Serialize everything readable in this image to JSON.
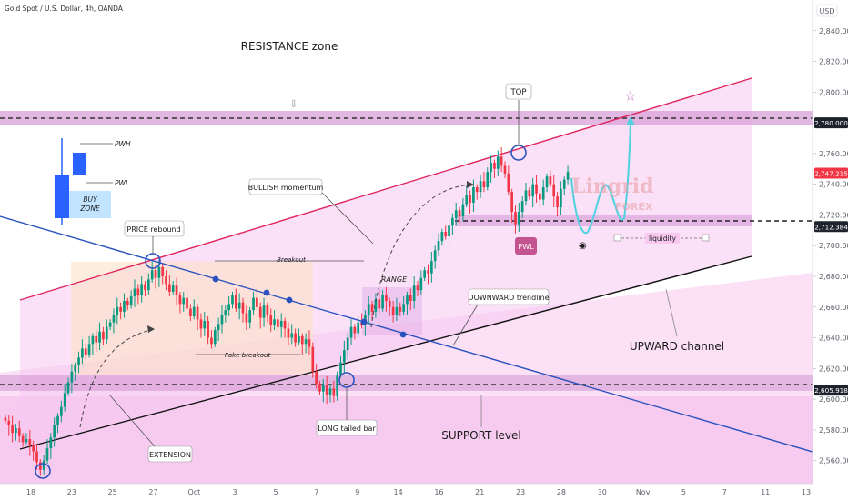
{
  "header": {
    "symbol": "Gold Spot / U.S. Dollar, 4h, OANDA",
    "currency": "USD"
  },
  "colors": {
    "up": "#089981",
    "down": "#f23645",
    "resistance_band": "#d59ad6",
    "channel_fill": "#f8c8f0",
    "trendline_blue": "#2a52be",
    "channel_upper": "#e0245e",
    "channel_lower": "#111111",
    "forecast": "#4fd1e0",
    "brand": "#e8a0a8"
  },
  "chart_data": {
    "type": "candlestick",
    "x_tick_labels": [
      "18",
      "23",
      "25",
      "27",
      "Oct",
      "3",
      "5",
      "7",
      "9",
      "14",
      "16",
      "21",
      "23",
      "28",
      "30",
      "Nov",
      "5",
      "7",
      "11",
      "13"
    ],
    "ylim": [
      2545,
      2860
    ],
    "y_ticks": [
      2560,
      2580,
      2600,
      2620,
      2640,
      2660,
      2680,
      2700,
      2720,
      2740,
      2760,
      2780,
      2800,
      2820,
      2840
    ],
    "y_tick_labels": [
      "2,560.000",
      "2,580.000",
      "2,600.000",
      "2,620.000",
      "2,640.000",
      "2,660.000",
      "2,680.000",
      "2,700.000",
      "2,720.000",
      "2,740.000",
      "2,760.000",
      "2,780.000",
      "2,800.000",
      "2,820.000",
      "2,840.000"
    ],
    "price_tags": [
      {
        "value": 2780.0,
        "label": "2,780.000",
        "style": "dark"
      },
      {
        "value": 2747.215,
        "label": "2,747.215",
        "style": "red"
      },
      {
        "value": 2712.384,
        "label": "2,712.384",
        "style": "dark"
      },
      {
        "value": 2605.918,
        "label": "2,605.918",
        "style": "dark"
      }
    ],
    "closes": [
      2586,
      2583,
      2578,
      2581,
      2576,
      2572,
      2574,
      2570,
      2566,
      2559,
      2554,
      2560,
      2568,
      2575,
      2583,
      2589,
      2595,
      2604,
      2611,
      2618,
      2622,
      2627,
      2633,
      2629,
      2636,
      2641,
      2637,
      2644,
      2639,
      2647,
      2650,
      2655,
      2660,
      2657,
      2664,
      2661,
      2667,
      2672,
      2668,
      2675,
      2671,
      2678,
      2684,
      2679,
      2686,
      2680,
      2675,
      2670,
      2674,
      2668,
      2662,
      2666,
      2659,
      2654,
      2660,
      2652,
      2646,
      2651,
      2640,
      2636,
      2645,
      2649,
      2655,
      2658,
      2662,
      2668,
      2659,
      2663,
      2656,
      2650,
      2658,
      2666,
      2660,
      2653,
      2661,
      2655,
      2648,
      2652,
      2647,
      2651,
      2646,
      2640,
      2643,
      2637,
      2641,
      2636,
      2639,
      2634,
      2618,
      2610,
      2605,
      2609,
      2603,
      2607,
      2602,
      2616,
      2624,
      2632,
      2640,
      2647,
      2643,
      2650,
      2648,
      2655,
      2662,
      2657,
      2665,
      2659,
      2668,
      2664,
      2660,
      2655,
      2660,
      2657,
      2662,
      2668,
      2664,
      2674,
      2671,
      2679,
      2684,
      2682,
      2690,
      2697,
      2703,
      2709,
      2706,
      2713,
      2718,
      2723,
      2719,
      2727,
      2733,
      2728,
      2738,
      2735,
      2742,
      2738,
      2748,
      2754,
      2750,
      2758,
      2752,
      2747,
      2735,
      2722,
      2714,
      2722,
      2729,
      2736,
      2732,
      2740,
      2734,
      2730,
      2738,
      2745,
      2740,
      2732,
      2725,
      2737,
      2743,
      2748
    ]
  },
  "annotations": {
    "resistance_zone": "RESISTANCE zone",
    "top": "TOP",
    "pwl_tag": "PWL",
    "bullish": "BULLISH momentum",
    "price_rebound": "PRICE rebound",
    "breakout": "Breakout",
    "range": "RANGE",
    "downward_trendline": "DOWNWARD trendline",
    "fake_breakout": "Fake breakout",
    "upward_channel": "UPWARD channel",
    "extension": "EXTENSION",
    "long_tailed_bar": "LONG tailed bar",
    "support_level": "SUPPORT level",
    "liquidity": "liquidity",
    "pwh": "PWH",
    "pwl": "PWL",
    "buy_zone_1": "BUY",
    "buy_zone_2": "ZONE",
    "brand_1": "Lingrid",
    "brand_2": "FOREX"
  }
}
